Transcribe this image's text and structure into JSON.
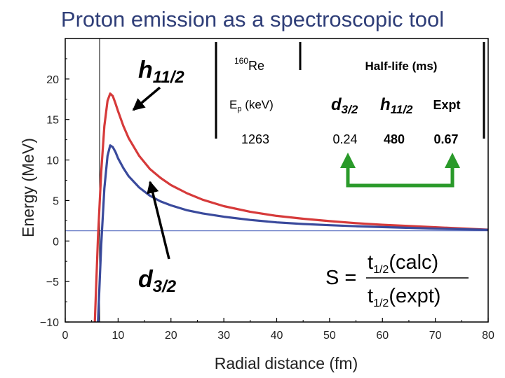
{
  "slide": {
    "title": "Proton emission as a spectroscopic tool"
  },
  "chart_data": {
    "type": "line",
    "xlabel": "Radial distance (fm)",
    "ylabel": "Energy (MeV)",
    "xlim": [
      0,
      80
    ],
    "ylim": [
      -10,
      25
    ],
    "x_ticks": [
      "0",
      "10",
      "20",
      "30",
      "40",
      "50",
      "60",
      "70",
      "80"
    ],
    "y_ticks": [
      "20",
      "15",
      "10",
      "5",
      "0",
      "−5",
      "−10"
    ],
    "grid": false,
    "legend": "none",
    "colors": {
      "h11_2": "#d63a3a",
      "d3_2": "#3a4a9c",
      "level": "#5a6fc0",
      "arrow_green": "#2a9a2a"
    },
    "series": [
      {
        "key": "h11_2",
        "x": [
          5.6,
          6.2,
          6.8,
          7.4,
          8.0,
          8.5,
          9.0,
          9.5,
          10,
          11,
          12,
          14,
          16,
          18,
          20,
          23,
          26,
          30,
          35,
          40,
          45,
          50,
          55,
          60,
          65,
          70,
          75,
          80
        ],
        "y": [
          -10,
          0.5,
          8.5,
          14.2,
          17.3,
          18.2,
          17.9,
          17.0,
          16.0,
          14.2,
          12.7,
          10.5,
          8.9,
          7.8,
          6.9,
          5.9,
          5.1,
          4.3,
          3.6,
          3.1,
          2.75,
          2.45,
          2.2,
          2.0,
          1.85,
          1.7,
          1.55,
          1.4
        ]
      },
      {
        "key": "d3_2",
        "x": [
          6.2,
          6.8,
          7.4,
          8.0,
          8.5,
          9.0,
          9.5,
          10,
          11,
          12,
          14,
          16,
          18,
          20,
          23,
          26,
          30,
          35,
          40,
          45,
          50,
          55,
          60,
          65,
          70,
          75,
          80
        ],
        "y": [
          -10,
          -0.5,
          6.5,
          10.5,
          11.8,
          11.6,
          11.0,
          10.2,
          9.0,
          8.0,
          6.6,
          5.6,
          4.9,
          4.4,
          3.8,
          3.4,
          3.0,
          2.6,
          2.3,
          2.1,
          1.95,
          1.82,
          1.72,
          1.62,
          1.52,
          1.45,
          1.38
        ]
      }
    ],
    "reference_lines": {
      "horizontal_y": 1.26,
      "vertical_x": 6.5
    },
    "annotations": {
      "h11_2_label": "h",
      "h11_2_sub": "11/2",
      "d3_2_label": "d",
      "d3_2_sub": "3/2"
    }
  },
  "table": {
    "nucleus_sup": "160",
    "nucleus": "Re",
    "halflife_header": "Half-life (ms)",
    "ep_label_main": "E",
    "ep_label_sub": "p",
    "ep_label_unit": " (keV)",
    "col_d_main": "d",
    "col_d_sub": "3/2",
    "col_h_main": "h",
    "col_h_sub": "11/2",
    "col_expt": "Expt",
    "ep_value": "1263",
    "d_value": "0.24",
    "h_value": "480",
    "expt_value": "0.67"
  },
  "formula": {
    "lhs": "S =",
    "num_main": "t",
    "num_sub": "1/2",
    "num_arg": "(calc)",
    "den_main": "t",
    "den_sub": "1/2",
    "den_arg": "(expt)"
  }
}
